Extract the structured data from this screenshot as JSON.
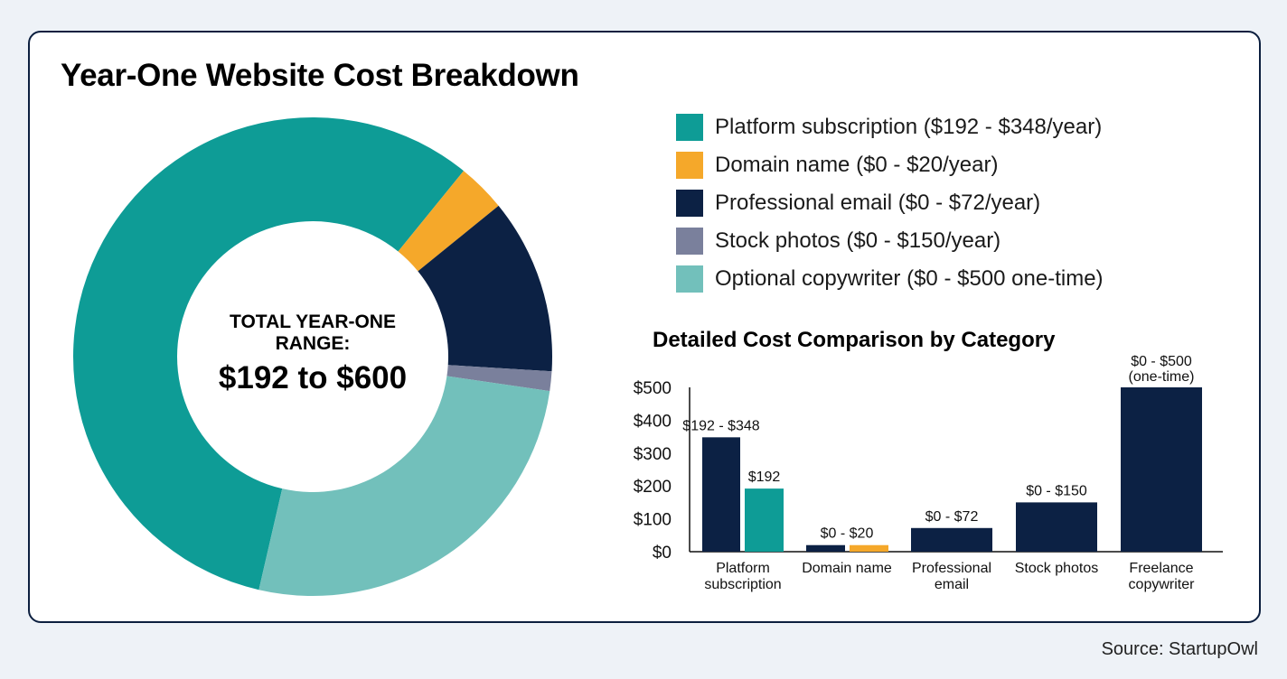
{
  "title": "Year-One Website Cost Breakdown",
  "source": "Source: StartupOwl",
  "chart_data": [
    {
      "type": "pie",
      "donut": true,
      "center_label": {
        "line1": "TOTAL YEAR-ONE",
        "line2": "RANGE:",
        "value": "$192 to $600"
      },
      "legend_position": "right",
      "slices": [
        {
          "label": "Platform subscription ($192 - $348/year)",
          "value": 348,
          "color": "#0e9c96"
        },
        {
          "label": "Domain name ($0 - $20/year)",
          "value": 20,
          "color": "#f5a82a"
        },
        {
          "label": "Professional email ($0 - $72/year)",
          "value": 72,
          "color": "#0c2144"
        },
        {
          "label": "Stock photos ($0 - $150/year)",
          "value": 8,
          "color": "#7a809c"
        },
        {
          "label": "Optional copywriter ($0 - $500 one-time)",
          "value": 160,
          "color": "#72c0bb"
        }
      ]
    },
    {
      "type": "bar",
      "title": "Detailed Cost Comparison by Category",
      "ylim": [
        0,
        500
      ],
      "yticks": [
        "$0",
        "$100",
        "$200",
        "$300",
        "$400",
        "$500"
      ],
      "grid": false,
      "categories": [
        {
          "label": [
            "Platform",
            "subscription"
          ],
          "bars": [
            {
              "value": 348,
              "color": "#0c2144",
              "label": "$192 - $348"
            },
            {
              "value": 192,
              "color": "#0e9c96",
              "label": "$192"
            }
          ]
        },
        {
          "label": [
            "Domain name"
          ],
          "bars": [
            {
              "value": 20,
              "color": "#0c2144"
            },
            {
              "value": 20,
              "color": "#f5a82a"
            }
          ],
          "group_label": "$0 - $20"
        },
        {
          "label": [
            "Professional",
            "email"
          ],
          "bars": [
            {
              "value": 72,
              "color": "#0c2144",
              "label": "$0 - $72"
            }
          ]
        },
        {
          "label": [
            "Stock photos"
          ],
          "bars": [
            {
              "value": 150,
              "color": "#0c2144",
              "label": "$0 - $150"
            }
          ]
        },
        {
          "label": [
            "Freelance",
            "copywriter"
          ],
          "bars": [
            {
              "value": 500,
              "color": "#0c2144",
              "label": "$0 - $500",
              "label2": "(one-time)"
            }
          ]
        }
      ]
    }
  ]
}
